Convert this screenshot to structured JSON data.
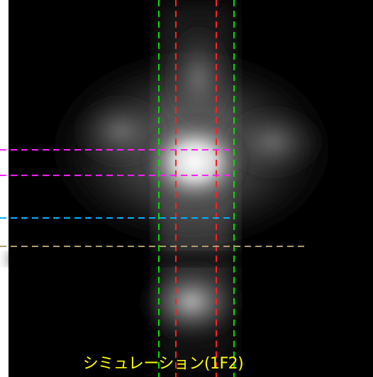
{
  "caption": {
    "text": "シミュレーション(1F2)",
    "color": "#ffff00"
  },
  "image": {
    "background": "#000000",
    "glow_color": "#ffffff"
  },
  "guides": {
    "green": "#00e000",
    "red": "#ff2020",
    "magenta": "#ff20ff",
    "cyan": "#00b0ff",
    "tan": "#b09a70"
  }
}
